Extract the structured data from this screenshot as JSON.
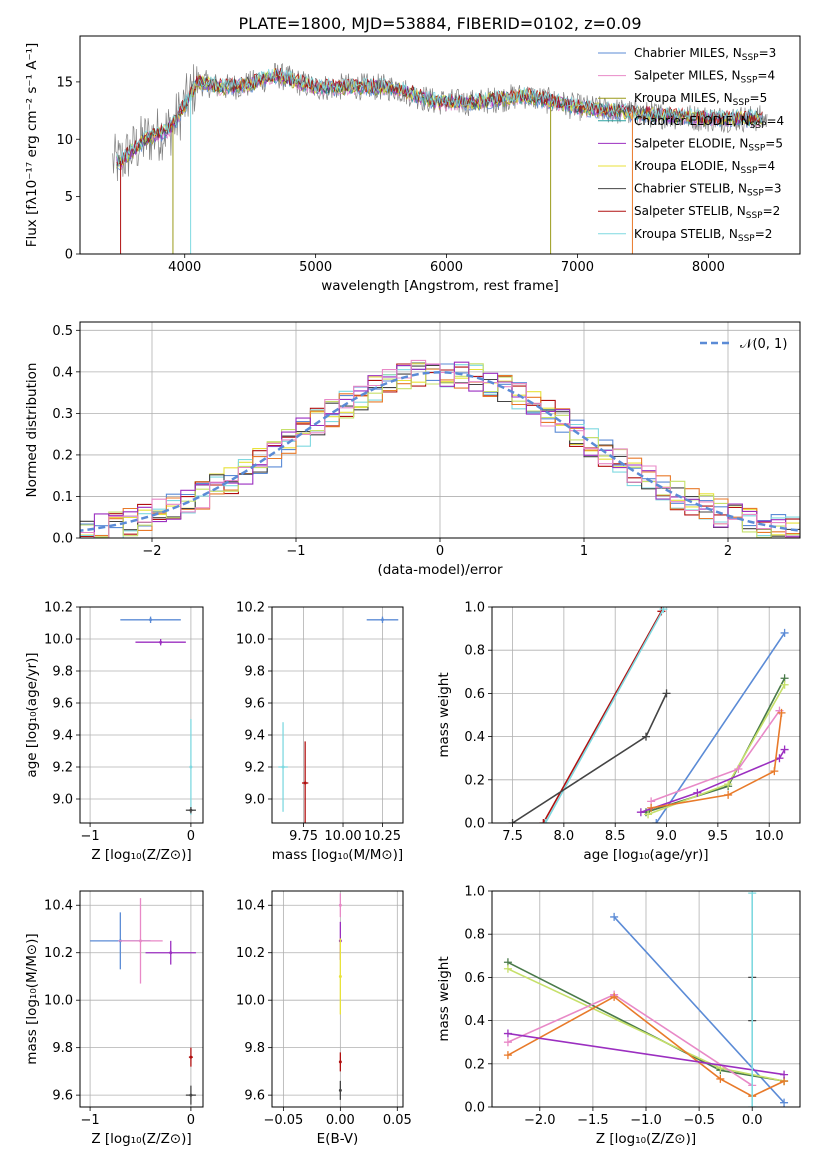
{
  "chart_data": [
    {
      "id": "spectrum",
      "type": "line",
      "title": "PLATE=1800, MJD=53884, FIBERID=0102, z=0.09",
      "xlabel": "wavelength [Angstrom, rest frame]",
      "ylabel": "Flux [fλ10⁻¹⁷ erg cm⁻² s⁻¹ A⁻¹]",
      "xlim": [
        3200,
        8700
      ],
      "ylim": [
        0,
        19
      ],
      "xticks": [
        "4000",
        "5000",
        "6000",
        "7000",
        "8000"
      ],
      "yticks": [
        "0",
        "5",
        "10",
        "15"
      ],
      "legend_position": "right",
      "series": [
        {
          "name": "Chabrier MILES, N_SSP=3",
          "color": "#5b8bd6"
        },
        {
          "name": "Salpeter MILES, N_SSP=4",
          "color": "#e889c7"
        },
        {
          "name": "Kroupa MILES, N_SSP=5",
          "color": "#9a9a1a"
        },
        {
          "name": "Chabrier ELODIE, N_SSP=4",
          "color": "#2aa0a0"
        },
        {
          "name": "Salpeter ELODIE, N_SSP=5",
          "color": "#9b2fc0"
        },
        {
          "name": "Kroupa ELODIE, N_SSP=4",
          "color": "#e8e23a"
        },
        {
          "name": "Chabrier STELIB, N_SSP=3",
          "color": "#444444"
        },
        {
          "name": "Salpeter STELIB, N_SSP=2",
          "color": "#b01010"
        },
        {
          "name": "Kroupa STELIB, N_SSP=2",
          "color": "#7fd9e0"
        }
      ],
      "continuum_x": [
        3500,
        3700,
        3900,
        4000,
        4100,
        4300,
        4500,
        4700,
        5000,
        5300,
        5600,
        5900,
        6200,
        6600,
        7000,
        7500,
        8000,
        8400
      ],
      "continuum_y": [
        8.0,
        10.0,
        11.0,
        13.0,
        15.0,
        14.5,
        14.8,
        15.6,
        14.5,
        14.6,
        14.5,
        13.3,
        13.2,
        13.8,
        12.8,
        12.2,
        11.8,
        11.8
      ]
    },
    {
      "id": "residuals",
      "type": "histogram",
      "xlabel": "(data-model)/error",
      "ylabel": "Normed distribution",
      "xlim": [
        -2.5,
        2.5
      ],
      "ylim": [
        0,
        0.52
      ],
      "xticks": [
        "−2",
        "−1",
        "0",
        "1",
        "2"
      ],
      "yticks": [
        "0.0",
        "0.1",
        "0.2",
        "0.3",
        "0.4",
        "0.5"
      ],
      "legend": "𝒩(0, 1)",
      "gaussian": {
        "mean": 0,
        "sigma": 1,
        "color": "#5b8bd6"
      },
      "hist_colors": [
        "#5b8bd6",
        "#e8e23a",
        "#b01010",
        "#7fd9e0",
        "#e87a2a",
        "#444444",
        "#c6e06a",
        "#9b2fc0",
        "#e889c7"
      ]
    },
    {
      "id": "age_vs_Z",
      "type": "scatter",
      "xlabel": "Z [log₁₀(Z/Z⊙)]",
      "ylabel": "age  [log₁₀(age/yr)]",
      "xlim": [
        -1.1,
        0.12
      ],
      "ylim": [
        8.85,
        10.2
      ],
      "xticks": [
        "−1",
        "0"
      ],
      "yticks": [
        "9.0",
        "9.2",
        "9.4",
        "9.6",
        "9.8",
        "10.0",
        "10.2"
      ],
      "points": [
        {
          "x": -0.4,
          "xerr": 0.3,
          "y": 10.12,
          "yerr": 0.02,
          "color": "#5b8bd6"
        },
        {
          "x": -0.3,
          "xerr": 0.25,
          "y": 9.98,
          "yerr": 0.02,
          "color": "#9b2fc0"
        },
        {
          "x": 0.0,
          "xerr": 0.0,
          "y": 9.2,
          "yerr": 0.3,
          "color": "#7fd9e0"
        },
        {
          "x": 0.0,
          "xerr": 0.05,
          "y": 8.93,
          "yerr": 0.02,
          "color": "#444444"
        }
      ]
    },
    {
      "id": "age_vs_mass",
      "type": "scatter",
      "xlabel": "mass [log₁₀(M/M⊙)]",
      "xlim": [
        9.55,
        10.38
      ],
      "ylim": [
        8.85,
        10.2
      ],
      "xticks": [
        "9.75",
        "10.00",
        "10.25"
      ],
      "yticks": [
        "9.0",
        "9.2",
        "9.4",
        "9.6",
        "9.8",
        "10.0",
        "10.2"
      ],
      "points": [
        {
          "x": 10.25,
          "xerr": 0.1,
          "y": 10.12,
          "yerr": 0.02,
          "color": "#5b8bd6"
        },
        {
          "x": 9.62,
          "xerr": 0.03,
          "y": 9.2,
          "yerr": 0.28,
          "color": "#7fd9e0"
        },
        {
          "x": 9.76,
          "xerr": 0.02,
          "y": 9.1,
          "yerr": 0.26,
          "color": "#b01010"
        }
      ]
    },
    {
      "id": "weight_vs_age",
      "type": "line",
      "xlabel": "age  [log₁₀(age/yr)]",
      "ylabel": "mass weight",
      "xlim": [
        7.3,
        10.3
      ],
      "ylim": [
        0.0,
        1.0
      ],
      "xticks": [
        "7.5",
        "8.0",
        "8.5",
        "9.0",
        "9.5",
        "10.0"
      ],
      "yticks": [
        "0.0",
        "0.2",
        "0.4",
        "0.6",
        "0.8",
        "1.0"
      ],
      "series": [
        {
          "color": "#b01010",
          "x": [
            7.8,
            8.95
          ],
          "y": [
            0.0,
            0.98
          ]
        },
        {
          "color": "#7fd9e0",
          "x": [
            7.82,
            8.97
          ],
          "y": [
            0.0,
            0.99
          ]
        },
        {
          "color": "#444444",
          "x": [
            7.5,
            8.8,
            9.0
          ],
          "y": [
            0.0,
            0.4,
            0.6
          ]
        },
        {
          "color": "#5b8bd6",
          "x": [
            8.9,
            10.15
          ],
          "y": [
            0.0,
            0.88
          ]
        },
        {
          "color": "#4a7a4a",
          "x": [
            8.8,
            9.6,
            10.15
          ],
          "y": [
            0.05,
            0.17,
            0.67
          ]
        },
        {
          "color": "#c6e06a",
          "x": [
            8.82,
            9.6,
            10.15
          ],
          "y": [
            0.04,
            0.18,
            0.64
          ]
        },
        {
          "color": "#e889c7",
          "x": [
            8.85,
            9.7,
            10.1
          ],
          "y": [
            0.1,
            0.25,
            0.52
          ]
        },
        {
          "color": "#9b2fc0",
          "x": [
            8.75,
            9.3,
            10.1,
            10.15
          ],
          "y": [
            0.05,
            0.14,
            0.3,
            0.34
          ]
        },
        {
          "color": "#e87a2a",
          "x": [
            8.85,
            9.6,
            10.05,
            10.12
          ],
          "y": [
            0.07,
            0.13,
            0.24,
            0.51
          ]
        }
      ]
    },
    {
      "id": "mass_vs_Z",
      "type": "scatter",
      "xlabel": "Z [log₁₀(Z/Z⊙)]",
      "ylabel": "mass [log₁₀(M/M⊙)]",
      "xlim": [
        -1.1,
        0.12
      ],
      "ylim": [
        9.55,
        10.46
      ],
      "xticks": [
        "−1",
        "0"
      ],
      "yticks": [
        "9.6",
        "9.8",
        "10.0",
        "10.2",
        "10.4"
      ],
      "points": [
        {
          "x": -0.7,
          "xerr": 0.3,
          "y": 10.25,
          "yerr": 0.12,
          "color": "#5b8bd6"
        },
        {
          "x": -0.5,
          "xerr": 0.22,
          "y": 10.25,
          "yerr": 0.18,
          "color": "#e889c7"
        },
        {
          "x": -0.2,
          "xerr": 0.25,
          "y": 10.2,
          "yerr": 0.05,
          "color": "#9b2fc0"
        },
        {
          "x": 0.0,
          "xerr": 0.05,
          "y": 9.6,
          "yerr": 0.04,
          "color": "#444444"
        },
        {
          "x": 0.0,
          "xerr": 0.02,
          "y": 9.76,
          "yerr": 0.04,
          "color": "#b01010"
        }
      ]
    },
    {
      "id": "mass_vs_EBV",
      "type": "scatter",
      "xlabel": "E(B-V)",
      "xlim": [
        -0.06,
        0.055
      ],
      "ylim": [
        9.55,
        10.46
      ],
      "xticks": [
        "−0.05",
        "0.00",
        "0.05"
      ],
      "yticks": [
        "9.6",
        "9.8",
        "10.0",
        "10.2",
        "10.4"
      ],
      "points": [
        {
          "x": 0.0,
          "y": 10.4,
          "yerr": 0.05,
          "color": "#e889c7"
        },
        {
          "x": 0.0,
          "y": 10.25,
          "yerr": 0.08,
          "color": "#9b2fc0"
        },
        {
          "x": 0.0,
          "y": 10.1,
          "yerr": 0.16,
          "color": "#e8e23a"
        },
        {
          "x": 0.0,
          "y": 9.74,
          "yerr": 0.04,
          "color": "#b01010"
        },
        {
          "x": 0.0,
          "y": 9.62,
          "yerr": 0.04,
          "color": "#444444"
        }
      ]
    },
    {
      "id": "weight_vs_Z",
      "type": "line",
      "xlabel": "Z [log₁₀(Z/Z⊙)]",
      "ylabel": "mass weight",
      "xlim": [
        -2.45,
        0.45
      ],
      "ylim": [
        0.0,
        1.0
      ],
      "xticks": [
        "−2.0",
        "−1.5",
        "−1.0",
        "−0.5",
        "0.0"
      ],
      "yticks": [
        "0.0",
        "0.2",
        "0.4",
        "0.6",
        "0.8",
        "1.0"
      ],
      "series": [
        {
          "color": "#5b8bd6",
          "x": [
            -1.3,
            0.3
          ],
          "y": [
            0.88,
            0.02
          ]
        },
        {
          "color": "#4a7a4a",
          "x": [
            -2.3,
            -0.3,
            0.3
          ],
          "y": [
            0.67,
            0.17,
            0.12
          ]
        },
        {
          "color": "#c6e06a",
          "x": [
            -2.3,
            -0.3,
            0.3
          ],
          "y": [
            0.64,
            0.18,
            0.12
          ]
        },
        {
          "color": "#e889c7",
          "x": [
            -2.3,
            -1.3,
            0.0
          ],
          "y": [
            0.3,
            0.52,
            0.1
          ]
        },
        {
          "color": "#e87a2a",
          "x": [
            -2.3,
            -1.3,
            -0.3,
            0.0,
            0.3
          ],
          "y": [
            0.24,
            0.51,
            0.13,
            0.05,
            0.12
          ]
        },
        {
          "color": "#9b2fc0",
          "x": [
            -2.3,
            0.3
          ],
          "y": [
            0.34,
            0.15
          ]
        },
        {
          "color": "#444444",
          "x": [
            0.0,
            0.0
          ],
          "y": [
            0.4,
            0.6
          ]
        },
        {
          "color": "#7fd9e0",
          "x": [
            0.0,
            0.0
          ],
          "y": [
            0.0,
            0.99
          ]
        }
      ]
    }
  ]
}
